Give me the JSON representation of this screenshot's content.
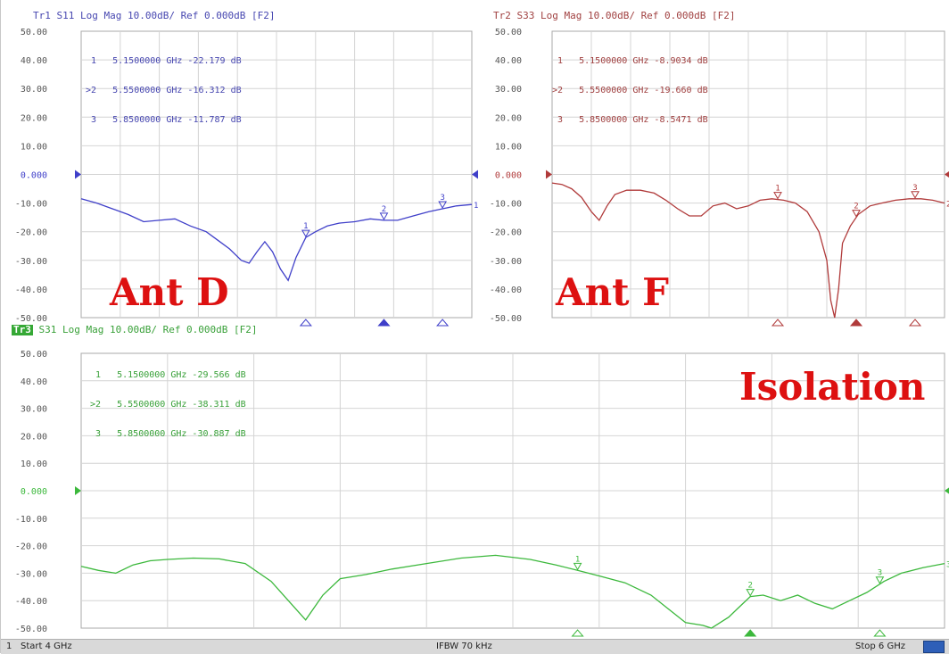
{
  "panels": {
    "tr1": {
      "header": "Tr1 S11 Log Mag 10.00dB/ Ref 0.000dB [F2]",
      "markers": [
        {
          "label": " 1",
          "freq": "5.1500000 GHz",
          "val": "-22.179 dB"
        },
        {
          "label": ">2",
          "freq": "5.5500000 GHz",
          "val": "-16.312 dB"
        },
        {
          "label": " 3",
          "freq": "5.8500000 GHz",
          "val": "-11.787 dB"
        }
      ],
      "big_label": "Ant D",
      "color": "#3f3fc9"
    },
    "tr2": {
      "header": "Tr2 S33 Log Mag 10.00dB/ Ref 0.000dB [F2]",
      "markers": [
        {
          "label": " 1",
          "freq": "5.1500000 GHz",
          "val": "-8.9034 dB"
        },
        {
          "label": ">2",
          "freq": "5.5500000 GHz",
          "val": "-19.660 dB"
        },
        {
          "label": " 3",
          "freq": "5.8500000 GHz",
          "val": "-8.5471 dB"
        }
      ],
      "big_label": "Ant F",
      "color": "#b03a3a"
    },
    "tr3": {
      "tag": "Tr3",
      "header": " S31 Log Mag 10.00dB/ Ref 0.000dB [F2]",
      "markers": [
        {
          "label": " 1",
          "freq": "5.1500000 GHz",
          "val": "-29.566 dB"
        },
        {
          "label": ">2",
          "freq": "5.5500000 GHz",
          "val": "-38.311 dB"
        },
        {
          "label": " 3",
          "freq": "5.8500000 GHz",
          "val": "-30.887 dB"
        }
      ],
      "big_label": "Isolation",
      "color": "#3cb83c"
    }
  },
  "status": {
    "channel": "1",
    "start": "Start 4 GHz",
    "ifbw": "IFBW 70 kHz",
    "stop": "Stop 6 GHz"
  },
  "chart_data": [
    {
      "type": "line",
      "title": "Tr1 S11 Log Mag 10.00dB/ Ref 0.000dB [F2]",
      "ylim": [
        -50,
        50
      ],
      "yticks": [
        "50.00",
        "40.00",
        "30.00",
        "20.00",
        "10.00",
        "0.000",
        "-10.00",
        "-20.00",
        "-30.00",
        "-40.00",
        "-50.00"
      ],
      "xlim": [
        4.0,
        6.0
      ],
      "series": [
        {
          "color": "#3f3fc9",
          "x": [
            4.0,
            4.08,
            4.16,
            4.24,
            4.32,
            4.4,
            4.48,
            4.56,
            4.64,
            4.7,
            4.76,
            4.82,
            4.86,
            4.9,
            4.94,
            4.98,
            5.02,
            5.06,
            5.1,
            5.15,
            5.2,
            5.26,
            5.32,
            5.4,
            5.48,
            5.55,
            5.62,
            5.7,
            5.78,
            5.85,
            5.92,
            6.0
          ],
          "y": [
            -8.5,
            -10,
            -12,
            -14,
            -16.5,
            -16,
            -15.5,
            -18,
            -20,
            -23,
            -26,
            -30,
            -31,
            -27,
            -23.5,
            -27,
            -33,
            -37,
            -29,
            -22,
            -20,
            -18,
            -17,
            -16.5,
            -15.5,
            -16,
            -16,
            -14.5,
            -13,
            -12,
            -11,
            -10.5
          ]
        }
      ]
    },
    {
      "type": "line",
      "title": "Tr2 S33 Log Mag 10.00dB/ Ref 0.000dB [F2]",
      "ylim": [
        -50,
        50
      ],
      "yticks": [
        "50.00",
        "40.00",
        "30.00",
        "20.00",
        "10.00",
        "0.000",
        "-10.00",
        "-20.00",
        "-30.00",
        "-40.00",
        "-50.00"
      ],
      "xlim": [
        4.0,
        6.0
      ],
      "series": [
        {
          "color": "#b03a3a",
          "x": [
            4.0,
            4.05,
            4.1,
            4.15,
            4.2,
            4.24,
            4.28,
            4.32,
            4.38,
            4.45,
            4.52,
            4.58,
            4.64,
            4.7,
            4.76,
            4.82,
            4.88,
            4.94,
            5.0,
            5.06,
            5.12,
            5.18,
            5.24,
            5.3,
            5.36,
            5.4,
            5.42,
            5.44,
            5.46,
            5.48,
            5.52,
            5.56,
            5.62,
            5.68,
            5.75,
            5.82,
            5.88,
            5.94,
            6.0
          ],
          "y": [
            -3,
            -3.5,
            -5,
            -8,
            -13,
            -16,
            -11,
            -7,
            -5.5,
            -5.5,
            -6.5,
            -9,
            -12,
            -14.5,
            -14.5,
            -11,
            -10,
            -12,
            -11,
            -9,
            -8.5,
            -9,
            -10,
            -13,
            -20,
            -30,
            -44,
            -50,
            -40,
            -24,
            -18,
            -14,
            -11,
            -10,
            -9,
            -8.5,
            -8.5,
            -9,
            -10
          ]
        }
      ]
    },
    {
      "type": "line",
      "title": "Tr3 S31 Log Mag 10.00dB/ Ref 0.000dB [F2]",
      "ylim": [
        -50,
        50
      ],
      "yticks": [
        "50.00",
        "40.00",
        "30.00",
        "20.00",
        "10.00",
        "0.000",
        "-10.00",
        "-20.00",
        "-30.00",
        "-40.00",
        "-50.00"
      ],
      "xlim": [
        4.0,
        6.0
      ],
      "series": [
        {
          "color": "#3cb83c",
          "x": [
            4.0,
            4.04,
            4.08,
            4.12,
            4.16,
            4.2,
            4.26,
            4.32,
            4.38,
            4.44,
            4.48,
            4.52,
            4.56,
            4.6,
            4.66,
            4.72,
            4.8,
            4.88,
            4.96,
            5.04,
            5.1,
            5.15,
            5.2,
            5.26,
            5.32,
            5.36,
            5.4,
            5.44,
            5.46,
            5.5,
            5.52,
            5.55,
            5.58,
            5.62,
            5.66,
            5.7,
            5.74,
            5.78,
            5.82,
            5.86,
            5.9,
            5.95,
            6.0
          ],
          "y": [
            -27.5,
            -29,
            -30,
            -27,
            -25.5,
            -25,
            -24.5,
            -24.8,
            -26.5,
            -33,
            -40,
            -47,
            -38,
            -32,
            -30.5,
            -28.5,
            -26.5,
            -24.5,
            -23.5,
            -25,
            -27,
            -29,
            -31,
            -33.5,
            -38,
            -43,
            -48,
            -49,
            -50,
            -46,
            -43,
            -38.5,
            -38,
            -40,
            -38,
            -41,
            -43,
            -40,
            -37,
            -33,
            -30,
            -28,
            -26.5
          ]
        }
      ]
    }
  ]
}
